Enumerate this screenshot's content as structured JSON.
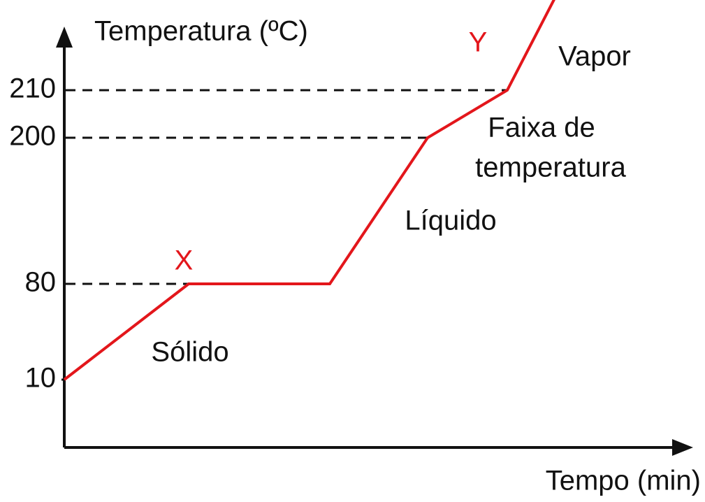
{
  "chart_data": {
    "type": "line",
    "y_label": "Temperatura (ºC)",
    "x_label": "Tempo (min)",
    "categories": [
      null,
      null,
      null,
      null,
      null,
      null
    ],
    "series": [
      {
        "color": "#e3161b",
        "values": [
          10,
          80,
          80,
          200,
          210,
          225
        ]
      }
    ],
    "ylim": [
      0,
      220
    ],
    "yticks": [
      10,
      80,
      200,
      210
    ],
    "annotations": [
      {
        "text": "X",
        "color": "#e3161b"
      },
      {
        "text": "Y",
        "color": "#e3161b"
      },
      {
        "text": "Sólido"
      },
      {
        "text": "Líquido"
      },
      {
        "text": "Faixa de"
      },
      {
        "text": "temperatura"
      },
      {
        "text": "Vapor"
      }
    ]
  }
}
